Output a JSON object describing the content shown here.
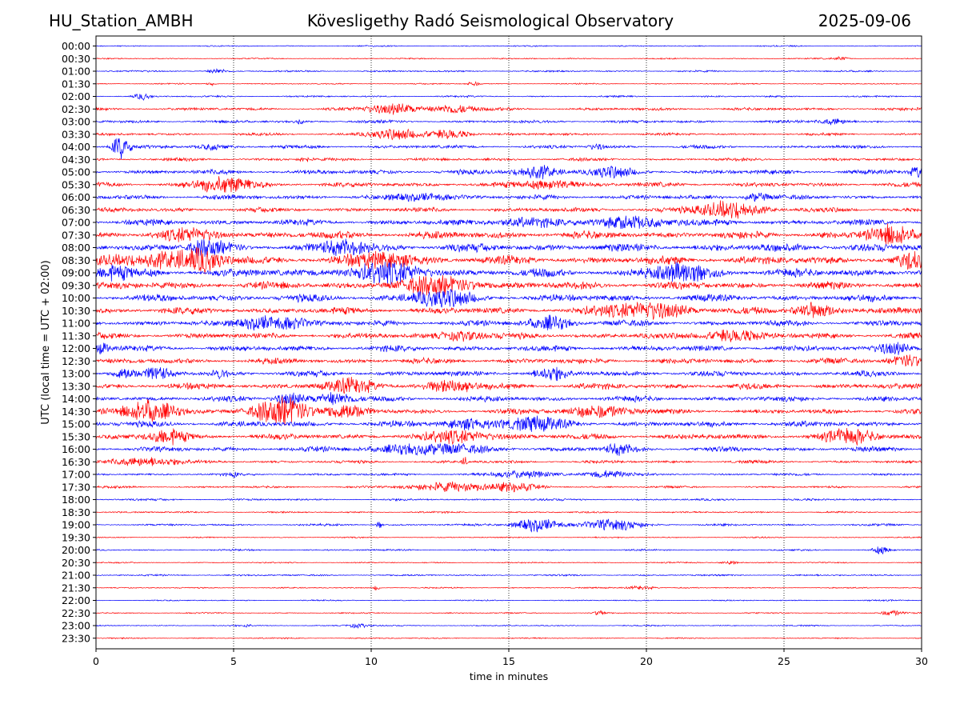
{
  "header": {
    "station": "HU_Station_AMBH",
    "title": "Kövesligethy Radó Seismological Observatory",
    "date": "2025-09-06"
  },
  "chart_data": {
    "type": "line",
    "title": "Kövesligethy Radó Seismological Observatory",
    "xlabel": "time in minutes",
    "ylabel": "UTC (local time = UTC + 02:00)",
    "xlim": [
      0,
      30
    ],
    "x_ticks": [
      "0",
      "5",
      "10",
      "15",
      "20",
      "25",
      "30"
    ],
    "x_tick_values": [
      0,
      5,
      10,
      15,
      20,
      25,
      30
    ],
    "grid": "vertical dotted lines at each x tick",
    "colors": {
      "even_row": "#0000ff",
      "odd_row": "#ff0000",
      "grid": "#000000"
    },
    "row_labels": [
      "00:00",
      "00:30",
      "01:00",
      "01:30",
      "02:00",
      "02:30",
      "03:00",
      "03:30",
      "04:00",
      "04:30",
      "05:00",
      "05:30",
      "06:00",
      "06:30",
      "07:00",
      "07:30",
      "08:00",
      "08:30",
      "09:00",
      "09:30",
      "10:00",
      "10:30",
      "11:00",
      "11:30",
      "12:00",
      "12:30",
      "13:00",
      "13:30",
      "14:00",
      "14:30",
      "15:00",
      "15:30",
      "16:00",
      "16:30",
      "17:00",
      "17:30",
      "18:00",
      "18:30",
      "19:00",
      "19:30",
      "20:00",
      "20:30",
      "21:00",
      "21:30",
      "22:00",
      "22:30",
      "23:00",
      "23:30"
    ],
    "base_amplitude": [
      0.15,
      0.15,
      0.2,
      0.15,
      0.2,
      0.35,
      0.35,
      0.3,
      0.4,
      0.35,
      0.55,
      0.55,
      0.55,
      0.55,
      0.7,
      0.9,
      1.0,
      1.0,
      1.0,
      0.9,
      0.85,
      0.8,
      0.7,
      0.7,
      0.7,
      0.65,
      0.65,
      0.7,
      0.65,
      0.6,
      0.7,
      0.7,
      0.6,
      0.35,
      0.3,
      0.25,
      0.25,
      0.2,
      0.25,
      0.15,
      0.2,
      0.15,
      0.2,
      0.15,
      0.15,
      0.15,
      0.15,
      0.15
    ],
    "bursts": [
      {
        "row": 1,
        "x": 27.1,
        "amp": 0.3,
        "width": 0.3
      },
      {
        "row": 2,
        "x": 4.4,
        "amp": 0.5,
        "width": 0.3
      },
      {
        "row": 3,
        "x": 4.2,
        "amp": 0.4,
        "width": 0.15
      },
      {
        "row": 3,
        "x": 13.7,
        "amp": 0.5,
        "width": 0.2
      },
      {
        "row": 4,
        "x": 1.7,
        "amp": 0.6,
        "width": 0.3
      },
      {
        "row": 5,
        "x": 10.8,
        "amp": 1.0,
        "width": 1.0
      },
      {
        "row": 5,
        "x": 13.0,
        "amp": 0.9,
        "width": 0.7
      },
      {
        "row": 6,
        "x": 7.4,
        "amp": 0.5,
        "width": 0.1
      },
      {
        "row": 6,
        "x": 26.8,
        "amp": 0.6,
        "width": 0.5
      },
      {
        "row": 7,
        "x": 10.8,
        "amp": 1.0,
        "width": 1.0
      },
      {
        "row": 7,
        "x": 12.9,
        "amp": 0.9,
        "width": 0.7
      },
      {
        "row": 8,
        "x": 0.9,
        "amp": 2.4,
        "width": 0.3
      },
      {
        "row": 8,
        "x": 4.2,
        "amp": 0.5,
        "width": 0.6
      },
      {
        "row": 8,
        "x": 18.2,
        "amp": 0.5,
        "width": 0.3
      },
      {
        "row": 9,
        "x": 7.6,
        "amp": 0.5,
        "width": 0.2
      },
      {
        "row": 10,
        "x": 16.0,
        "amp": 1.2,
        "width": 0.8
      },
      {
        "row": 10,
        "x": 18.6,
        "amp": 0.9,
        "width": 0.8
      },
      {
        "row": 10,
        "x": 29.9,
        "amp": 1.1,
        "width": 0.3
      },
      {
        "row": 11,
        "x": 4.6,
        "amp": 1.4,
        "width": 1.1
      },
      {
        "row": 11,
        "x": 16.5,
        "amp": 0.9,
        "width": 1.0
      },
      {
        "row": 12,
        "x": 12.0,
        "amp": 0.7,
        "width": 1.0
      },
      {
        "row": 12,
        "x": 24.0,
        "amp": 0.8,
        "width": 0.4
      },
      {
        "row": 13,
        "x": 23.0,
        "amp": 1.6,
        "width": 1.2
      },
      {
        "row": 14,
        "x": 19.6,
        "amp": 1.0,
        "width": 1.5
      },
      {
        "row": 14,
        "x": 15.5,
        "amp": 0.8,
        "width": 1.0
      },
      {
        "row": 15,
        "x": 28.8,
        "amp": 1.6,
        "width": 0.8
      },
      {
        "row": 15,
        "x": 3.5,
        "amp": 0.8,
        "width": 1.2
      },
      {
        "row": 16,
        "x": 4.0,
        "amp": 1.2,
        "width": 0.6
      },
      {
        "row": 16,
        "x": 9.0,
        "amp": 1.2,
        "width": 0.8
      },
      {
        "row": 17,
        "x": 2.5,
        "amp": 1.5,
        "width": 1.5
      },
      {
        "row": 17,
        "x": 4.0,
        "amp": 1.5,
        "width": 0.6
      },
      {
        "row": 17,
        "x": 10.5,
        "amp": 1.2,
        "width": 1.2
      },
      {
        "row": 17,
        "x": 29.7,
        "amp": 1.2,
        "width": 0.5
      },
      {
        "row": 18,
        "x": 10.5,
        "amp": 1.6,
        "width": 1.5
      },
      {
        "row": 18,
        "x": 21.3,
        "amp": 1.6,
        "width": 1.0
      },
      {
        "row": 18,
        "x": 0.6,
        "amp": 1.2,
        "width": 0.6
      },
      {
        "row": 19,
        "x": 12.5,
        "amp": 1.4,
        "width": 1.5
      },
      {
        "row": 20,
        "x": 12.5,
        "amp": 1.6,
        "width": 1.0
      },
      {
        "row": 21,
        "x": 20.0,
        "amp": 1.6,
        "width": 1.5
      },
      {
        "row": 21,
        "x": 26.0,
        "amp": 1.4,
        "width": 0.7
      },
      {
        "row": 22,
        "x": 6.0,
        "amp": 1.3,
        "width": 0.6
      },
      {
        "row": 22,
        "x": 7.0,
        "amp": 1.1,
        "width": 0.6
      },
      {
        "row": 22,
        "x": 16.5,
        "amp": 1.2,
        "width": 0.8
      },
      {
        "row": 23,
        "x": 13.3,
        "amp": 0.9,
        "width": 0.8
      },
      {
        "row": 23,
        "x": 23.0,
        "amp": 1.1,
        "width": 1.0
      },
      {
        "row": 24,
        "x": 0.2,
        "amp": 1.0,
        "width": 0.3
      },
      {
        "row": 24,
        "x": 29.0,
        "amp": 1.2,
        "width": 0.6
      },
      {
        "row": 25,
        "x": 29.5,
        "amp": 1.0,
        "width": 0.7
      },
      {
        "row": 26,
        "x": 1.0,
        "amp": 1.2,
        "width": 0.4
      },
      {
        "row": 26,
        "x": 2.2,
        "amp": 1.1,
        "width": 0.4
      },
      {
        "row": 26,
        "x": 16.5,
        "amp": 1.1,
        "width": 0.6
      },
      {
        "row": 26,
        "x": 4.5,
        "amp": 0.8,
        "width": 0.3
      },
      {
        "row": 27,
        "x": 9.3,
        "amp": 1.2,
        "width": 1.0
      },
      {
        "row": 27,
        "x": 13.0,
        "amp": 1.0,
        "width": 1.0
      },
      {
        "row": 28,
        "x": 8.7,
        "amp": 1.0,
        "width": 0.7
      },
      {
        "row": 28,
        "x": 7.0,
        "amp": 1.2,
        "width": 0.5
      },
      {
        "row": 29,
        "x": 2.0,
        "amp": 2.2,
        "width": 0.9
      },
      {
        "row": 29,
        "x": 6.8,
        "amp": 2.6,
        "width": 1.0
      },
      {
        "row": 29,
        "x": 9.0,
        "amp": 1.4,
        "width": 0.7
      },
      {
        "row": 29,
        "x": 18.2,
        "amp": 1.1,
        "width": 1.2
      },
      {
        "row": 30,
        "x": 15.8,
        "amp": 1.2,
        "width": 1.2
      },
      {
        "row": 30,
        "x": 13.5,
        "amp": 0.9,
        "width": 0.8
      },
      {
        "row": 31,
        "x": 2.6,
        "amp": 1.4,
        "width": 0.6
      },
      {
        "row": 31,
        "x": 13.3,
        "amp": 1.1,
        "width": 1.2
      },
      {
        "row": 31,
        "x": 27.5,
        "amp": 1.2,
        "width": 1.0
      },
      {
        "row": 32,
        "x": 12.0,
        "amp": 0.9,
        "width": 2.0
      },
      {
        "row": 32,
        "x": 19.0,
        "amp": 0.9,
        "width": 0.5
      },
      {
        "row": 33,
        "x": 1.8,
        "amp": 0.9,
        "width": 1.2
      },
      {
        "row": 33,
        "x": 13.4,
        "amp": 0.8,
        "width": 0.1
      },
      {
        "row": 34,
        "x": 15.5,
        "amp": 0.7,
        "width": 1.0
      },
      {
        "row": 34,
        "x": 18.5,
        "amp": 0.7,
        "width": 0.8
      },
      {
        "row": 34,
        "x": 5.0,
        "amp": 0.6,
        "width": 0.1
      },
      {
        "row": 35,
        "x": 13.0,
        "amp": 0.9,
        "width": 1.5
      },
      {
        "row": 35,
        "x": 15.3,
        "amp": 0.8,
        "width": 0.8
      },
      {
        "row": 38,
        "x": 16.0,
        "amp": 1.3,
        "width": 0.8
      },
      {
        "row": 38,
        "x": 18.8,
        "amp": 1.1,
        "width": 1.0
      },
      {
        "row": 38,
        "x": 10.3,
        "amp": 0.7,
        "width": 0.1
      },
      {
        "row": 40,
        "x": 28.5,
        "amp": 0.7,
        "width": 0.3
      },
      {
        "row": 41,
        "x": 23.0,
        "amp": 0.4,
        "width": 0.3
      },
      {
        "row": 43,
        "x": 10.2,
        "amp": 0.6,
        "width": 0.1
      },
      {
        "row": 43,
        "x": 19.8,
        "amp": 0.4,
        "width": 0.5
      },
      {
        "row": 45,
        "x": 18.3,
        "amp": 0.5,
        "width": 0.2
      },
      {
        "row": 45,
        "x": 28.9,
        "amp": 0.5,
        "width": 0.4
      },
      {
        "row": 46,
        "x": 9.5,
        "amp": 0.4,
        "width": 0.4
      },
      {
        "row": 46,
        "x": 5.5,
        "amp": 0.4,
        "width": 0.1
      }
    ]
  }
}
